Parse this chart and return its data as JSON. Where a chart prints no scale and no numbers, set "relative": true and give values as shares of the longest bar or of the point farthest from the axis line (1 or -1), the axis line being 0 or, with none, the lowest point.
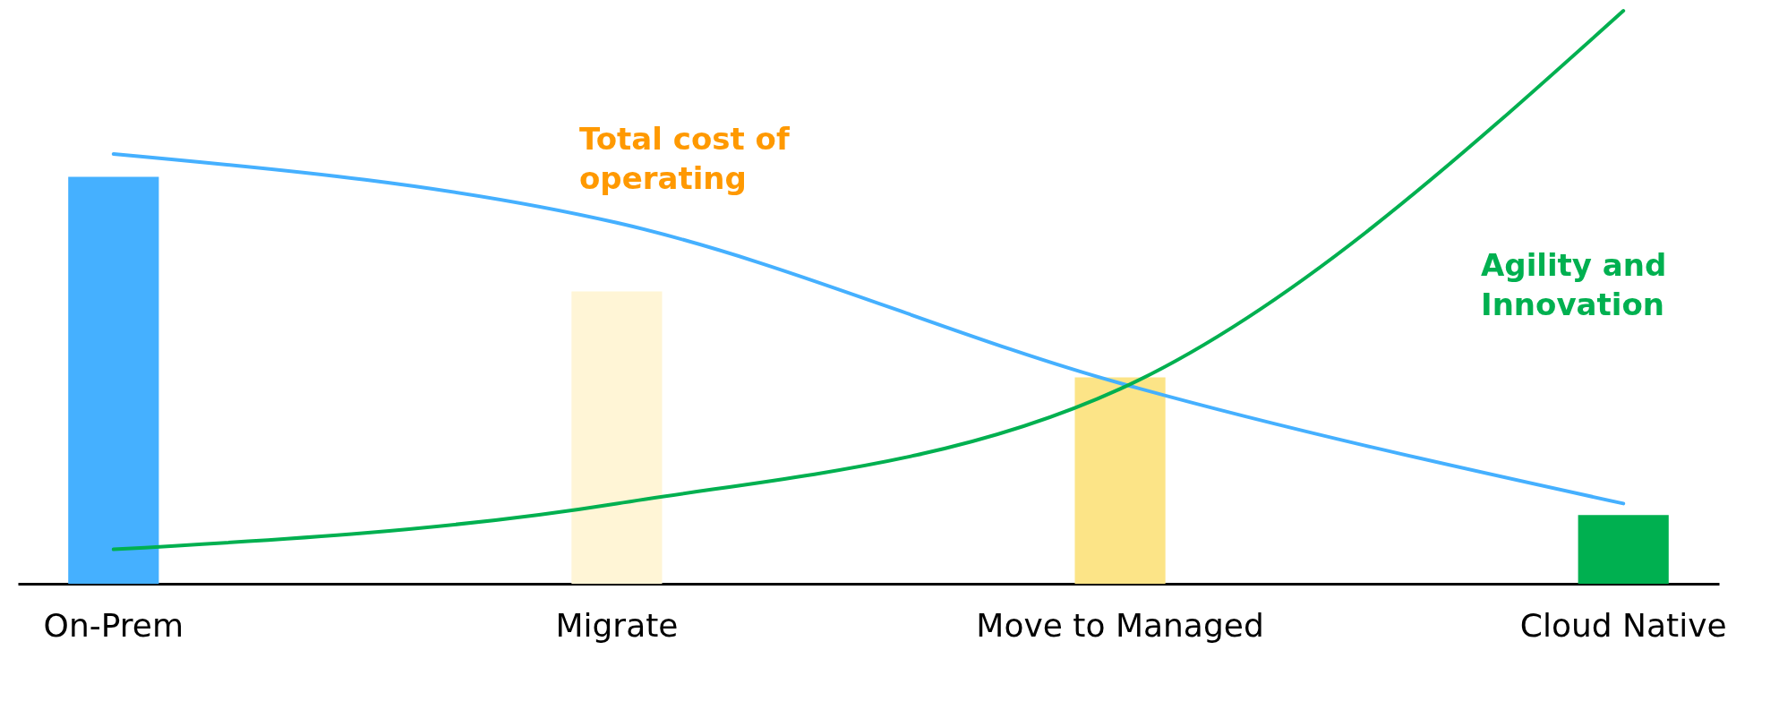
{
  "chart_data": {
    "type": "bar",
    "relative": true,
    "categories": [
      "On-Prem",
      "Migrate",
      "Move to Managed",
      "Cloud Native"
    ],
    "values": [
      0.71,
      0.51,
      0.36,
      0.12
    ],
    "colors": [
      "#45b0ff",
      "#fff5d6",
      "#fce487",
      "#00b050"
    ],
    "series": [
      {
        "type": "line",
        "color": "#45b0ff",
        "values": [
          0.75,
          0.63,
          0.35,
          0.14
        ]
      },
      {
        "type": "line",
        "color": "#00b050",
        "values": [
          0.06,
          0.14,
          0.34,
          1
        ]
      }
    ],
    "annotations": [
      "Total cost of operating",
      "Agility and Innovation"
    ],
    "grid": false
  }
}
